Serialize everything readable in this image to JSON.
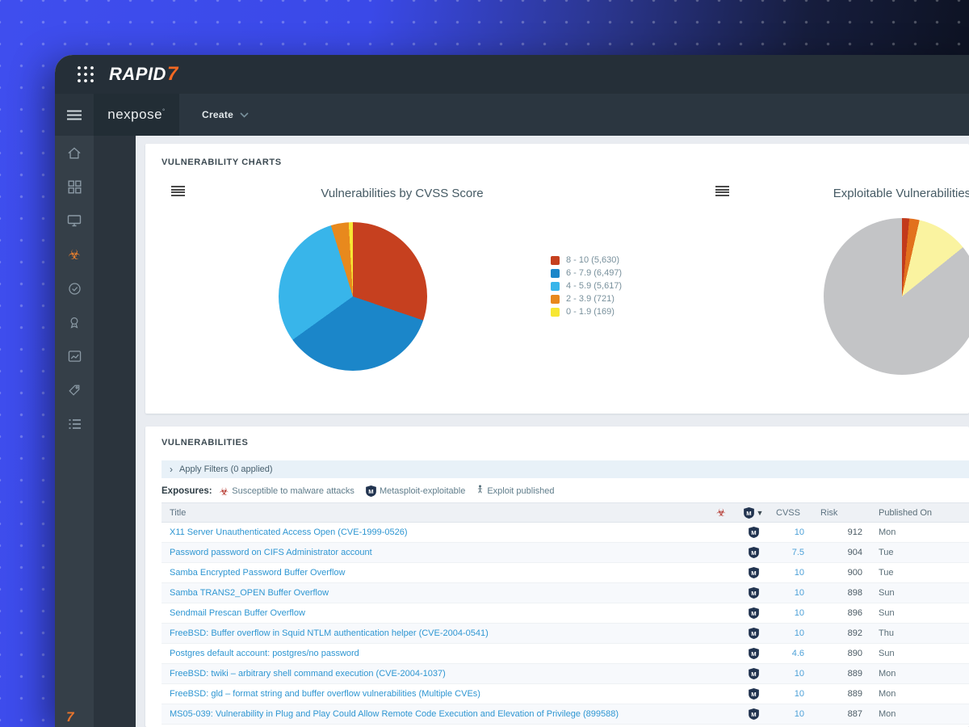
{
  "colors": {
    "accent_orange": "#f26822",
    "link_blue": "#2e96d2",
    "active_icon_orange": "#e87f2e",
    "biohazard_red": "#b0281e"
  },
  "header": {
    "logo_text": "RAPID",
    "logo_accent": "7"
  },
  "nav": {
    "product": "nexpose",
    "trademark": "°",
    "create_label": "Create"
  },
  "sidebar": {
    "icons": [
      "home-icon",
      "dashboards-icon",
      "assets-icon",
      "vulnerabilities-icon",
      "policies-icon",
      "reports-icon",
      "charts-icon",
      "tags-icon",
      "administration-icon"
    ],
    "active": "vulnerabilities-icon",
    "footer_mark": "7"
  },
  "charts_panel": {
    "heading": "VULNERABILITY CHARTS"
  },
  "chart_data": [
    {
      "type": "pie",
      "title": "Vulnerabilities by CVSS Score",
      "legend_position": "right",
      "slices": [
        {
          "label": "8 - 10",
          "value": 5630,
          "display": "8 - 10 (5,630)",
          "color": "#c6401f"
        },
        {
          "label": "6 - 7.9",
          "value": 6497,
          "display": "6 - 7.9 (6,497)",
          "color": "#1b86c9"
        },
        {
          "label": "4 - 5.9",
          "value": 5617,
          "display": "4 - 5.9 (5,617)",
          "color": "#38b5ea"
        },
        {
          "label": "2 - 3.9",
          "value": 721,
          "display": "2 - 3.9 (721)",
          "color": "#e8891d"
        },
        {
          "label": "0 - 1.9",
          "value": 169,
          "display": "0 - 1.9 (169)",
          "color": "#f7e733"
        }
      ]
    },
    {
      "type": "pie",
      "title": "Exploitable Vulnerabilities",
      "legend_position": "none",
      "slices": [
        {
          "label": "red-sliver",
          "value": 1.5,
          "color": "#c23a1c"
        },
        {
          "label": "orange-sliver",
          "value": 2.1,
          "color": "#e2711d"
        },
        {
          "label": "pale-yellow",
          "value": 10.6,
          "color": "#faf3a0"
        },
        {
          "label": "gray",
          "value": 85.8,
          "color": "#c3c4c6"
        }
      ]
    }
  ],
  "vulns_panel": {
    "heading": "VULNERABILITIES",
    "filters_chevron": "›",
    "filters_label": "Apply Filters (0 applied)",
    "exposures_label": "Exposures:",
    "exposures": [
      {
        "icon": "biohazard-icon",
        "label": "Susceptible to malware attacks"
      },
      {
        "icon": "metasploit-icon",
        "label": "Metasploit-exploitable"
      },
      {
        "icon": "exploit-published-icon",
        "label": "Exploit published"
      }
    ]
  },
  "table": {
    "columns": {
      "title": "Title",
      "cvss": "CVSS",
      "risk": "Risk",
      "published": "Published On"
    },
    "rows": [
      {
        "title": "X11 Server Unauthenticated Access Open (CVE-1999-0526)",
        "metasploit": true,
        "cvss": "10",
        "risk": "912",
        "published": "Mon"
      },
      {
        "title": "Password password on CIFS Administrator account",
        "metasploit": true,
        "cvss": "7.5",
        "risk": "904",
        "published": "Tue"
      },
      {
        "title": "Samba Encrypted Password Buffer Overflow",
        "metasploit": true,
        "cvss": "10",
        "risk": "900",
        "published": "Tue"
      },
      {
        "title": "Samba TRANS2_OPEN Buffer Overflow",
        "metasploit": true,
        "cvss": "10",
        "risk": "898",
        "published": "Sun"
      },
      {
        "title": "Sendmail Prescan Buffer Overflow",
        "metasploit": true,
        "cvss": "10",
        "risk": "896",
        "published": "Sun"
      },
      {
        "title": "FreeBSD: Buffer overflow in Squid NTLM authentication helper (CVE-2004-0541)",
        "metasploit": true,
        "cvss": "10",
        "risk": "892",
        "published": "Thu"
      },
      {
        "title": "Postgres default account: postgres/no password",
        "metasploit": true,
        "cvss": "4.6",
        "risk": "890",
        "published": "Sun"
      },
      {
        "title": "FreeBSD: twiki – arbitrary shell command execution (CVE-2004-1037)",
        "metasploit": true,
        "cvss": "10",
        "risk": "889",
        "published": "Mon"
      },
      {
        "title": "FreeBSD: gld – format string and buffer overflow vulnerabilities (Multiple CVEs)",
        "metasploit": true,
        "cvss": "10",
        "risk": "889",
        "published": "Mon"
      },
      {
        "title": "MS05-039: Vulnerability in Plug and Play Could Allow Remote Code Execution and Elevation of Privilege (899588)",
        "metasploit": true,
        "cvss": "10",
        "risk": "887",
        "published": "Mon"
      }
    ]
  }
}
